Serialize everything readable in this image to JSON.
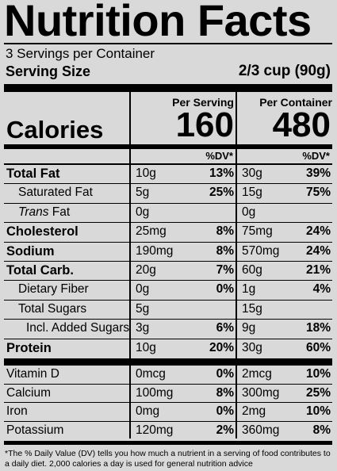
{
  "title": "Nutrition Facts",
  "servings_per_container": "3 Servings per Container",
  "serving_size_label": "Serving Size",
  "serving_size_value": "2/3 cup (90g)",
  "per_serving_header": "Per Serving",
  "per_container_header": "Per Container",
  "calories_label": "Calories",
  "calories_per_serving": "160",
  "calories_per_container": "480",
  "dv_header": "%DV*",
  "nutrients": [
    {
      "name": "Total Fat",
      "bold": true,
      "indent": 0,
      "s_amt": "10g",
      "s_dv": "13%",
      "c_amt": "30g",
      "c_dv": "39%"
    },
    {
      "name": "Saturated Fat",
      "bold": false,
      "indent": 1,
      "s_amt": "5g",
      "s_dv": "25%",
      "c_amt": "15g",
      "c_dv": "75%"
    },
    {
      "name": "Trans Fat",
      "bold": false,
      "indent": 1,
      "italic_prefix": "Trans",
      "name_rest": " Fat",
      "s_amt": "0g",
      "s_dv": "",
      "c_amt": "0g",
      "c_dv": ""
    },
    {
      "name": "Cholesterol",
      "bold": true,
      "indent": 0,
      "s_amt": "25mg",
      "s_dv": "8%",
      "c_amt": "75mg",
      "c_dv": "24%"
    },
    {
      "name": "Sodium",
      "bold": true,
      "indent": 0,
      "s_amt": "190mg",
      "s_dv": "8%",
      "c_amt": "570mg",
      "c_dv": "24%"
    },
    {
      "name": "Total Carb.",
      "bold": true,
      "indent": 0,
      "s_amt": "20g",
      "s_dv": "7%",
      "c_amt": "60g",
      "c_dv": "21%"
    },
    {
      "name": "Dietary Fiber",
      "bold": false,
      "indent": 1,
      "s_amt": "0g",
      "s_dv": "0%",
      "c_amt": "1g",
      "c_dv": "4%"
    },
    {
      "name": "Total Sugars",
      "bold": false,
      "indent": 1,
      "s_amt": "5g",
      "s_dv": "",
      "c_amt": "15g",
      "c_dv": ""
    },
    {
      "name": "Incl. Added Sugars",
      "bold": false,
      "indent": 2,
      "s_amt": "3g",
      "s_dv": "6%",
      "c_amt": "9g",
      "c_dv": "18%"
    },
    {
      "name": "Protein",
      "bold": true,
      "indent": 0,
      "s_amt": "10g",
      "s_dv": "20%",
      "c_amt": "30g",
      "c_dv": "60%"
    }
  ],
  "vitamins": [
    {
      "name": "Vitamin D",
      "s_amt": "0mcg",
      "s_dv": "0%",
      "c_amt": "2mcg",
      "c_dv": "10%"
    },
    {
      "name": "Calcium",
      "s_amt": "100mg",
      "s_dv": "8%",
      "c_amt": "300mg",
      "c_dv": "25%"
    },
    {
      "name": "Iron",
      "s_amt": "0mg",
      "s_dv": "0%",
      "c_amt": "2mg",
      "c_dv": "10%"
    },
    {
      "name": "Potassium",
      "s_amt": "120mg",
      "s_dv": "2%",
      "c_amt": "360mg",
      "c_dv": "8%"
    }
  ],
  "footnote": "*The % Daily Value (DV) tells you how much a nutrient in a serving of food contributes to a daily diet. 2,000 calories a day is used for general nutrition advice"
}
